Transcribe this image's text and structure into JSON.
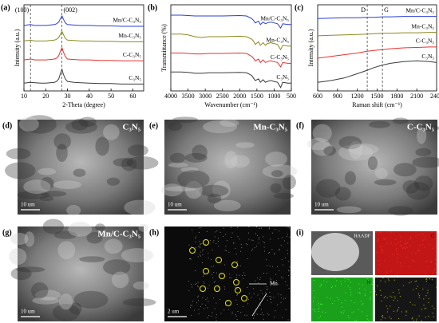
{
  "chart_data": [
    {
      "type": "line",
      "label": "(a)",
      "xlabel": "2-Theta (degree)",
      "ylabel": "Intensity (a.u.)",
      "xlim": [
        10,
        65
      ],
      "xticks": [
        10,
        20,
        30,
        40,
        50,
        60
      ],
      "ylim": [
        0,
        100
      ],
      "x": [
        10,
        13,
        15,
        18,
        20,
        22,
        24,
        25,
        26,
        27,
        27.5,
        28,
        29,
        30,
        33,
        36,
        40,
        45,
        50,
        55,
        60,
        65
      ],
      "ref_lines": [
        13,
        27.4
      ],
      "annotations": [
        "(100)",
        "(002)"
      ],
      "series": [
        {
          "name": "Mn/C-C₃N₅",
          "color": "#2a3fd6",
          "values": [
            76,
            77,
            76,
            76,
            76,
            76.5,
            77,
            78,
            80,
            85,
            87,
            84,
            79,
            77,
            76.5,
            76,
            76,
            75.5,
            75.5,
            75,
            75,
            75
          ]
        },
        {
          "name": "Mn-C₃N₅",
          "color": "#8c8a1e",
          "values": [
            58,
            59,
            58,
            58,
            58,
            58.5,
            59,
            60,
            62,
            67,
            69,
            66,
            61,
            59,
            58.5,
            58,
            58,
            57.5,
            57.5,
            57,
            57,
            57
          ]
        },
        {
          "name": "C-C₃N₅",
          "color": "#e8302d",
          "values": [
            36,
            37,
            36,
            36,
            36,
            36.5,
            37,
            38,
            41,
            48,
            50,
            46,
            40,
            37,
            36.5,
            36,
            36,
            35.5,
            35.5,
            35,
            35,
            35
          ]
        },
        {
          "name": "C₃N₅",
          "color": "#3a3a3a",
          "values": [
            9,
            10,
            9.5,
            9,
            9,
            9.5,
            10,
            11,
            14,
            22,
            25,
            20,
            14,
            11,
            10,
            9.5,
            9,
            8.5,
            8.5,
            8,
            8,
            8
          ]
        }
      ]
    },
    {
      "type": "line",
      "label": "(b)",
      "xlabel": "Wavenumber (cm⁻¹)",
      "ylabel": "Transmittance (%)",
      "xlim": [
        4000,
        500
      ],
      "xticks": [
        4000,
        3500,
        3000,
        2500,
        2000,
        1500,
        1000,
        500
      ],
      "ylim": [
        0,
        100
      ],
      "x": [
        4000,
        3700,
        3500,
        3300,
        3100,
        2900,
        2500,
        2000,
        1800,
        1650,
        1600,
        1550,
        1450,
        1400,
        1320,
        1250,
        1200,
        1100,
        1000,
        900,
        810,
        750,
        600,
        500
      ],
      "series": [
        {
          "name": "Mn/C-C₃N₅",
          "color": "#2a3fd6",
          "values": [
            88,
            88,
            87.5,
            87,
            87,
            87,
            87,
            87.5,
            87,
            84,
            82,
            79,
            81,
            77,
            80,
            78,
            79,
            80,
            79,
            78,
            73,
            78,
            77,
            77
          ]
        },
        {
          "name": "Mn-C₃N₅",
          "color": "#8c8a1e",
          "values": [
            66,
            66,
            65,
            63,
            62,
            63,
            63,
            63.5,
            63,
            60,
            58,
            54,
            57,
            53,
            56,
            53,
            55,
            56,
            55,
            54,
            48,
            53,
            52,
            52
          ]
        },
        {
          "name": "C-C₃N₅",
          "color": "#e8302d",
          "values": [
            44,
            44,
            43.5,
            43,
            43,
            43.5,
            43.5,
            44,
            43.5,
            40,
            38,
            35,
            37,
            33,
            36,
            33,
            34,
            35,
            34,
            33,
            28,
            33,
            32,
            32
          ]
        },
        {
          "name": "C₃N₅",
          "color": "#3a3a3a",
          "values": [
            22,
            22,
            21.5,
            20.5,
            20.5,
            21,
            21,
            21.5,
            21,
            18,
            15,
            12,
            14,
            10,
            13,
            10,
            11,
            12,
            11,
            10,
            4,
            10,
            9,
            9
          ]
        }
      ]
    },
    {
      "type": "line",
      "label": "(c)",
      "xlabel": "Raman shift (cm⁻¹)",
      "ylabel": "Intensity (a.u.)",
      "xlim": [
        600,
        2400
      ],
      "xticks": [
        600,
        900,
        1200,
        1500,
        1800,
        2100,
        2400
      ],
      "ylim": [
        0,
        100
      ],
      "x": [
        600,
        800,
        1000,
        1200,
        1350,
        1450,
        1580,
        1700,
        1900,
        2100,
        2300,
        2400
      ],
      "ref_lines": [
        1350,
        1580
      ],
      "annotations": [
        "D",
        "G"
      ],
      "series": [
        {
          "name": "Mn/C-C₃N₅",
          "color": "#2a3fd6",
          "values": [
            84,
            84.5,
            85,
            85,
            85.5,
            85.5,
            86,
            86,
            86.5,
            86.5,
            86.5,
            86.5
          ]
        },
        {
          "name": "Mn-C₃N₅",
          "color": "#8c8a1e",
          "values": [
            64,
            64.5,
            65,
            65.5,
            66,
            66.5,
            67,
            67,
            67.5,
            67.5,
            68,
            68
          ]
        },
        {
          "name": "C-C₃N₅",
          "color": "#e8302d",
          "values": [
            38,
            40,
            42,
            44,
            46,
            47,
            48,
            49,
            50,
            50.5,
            51,
            51
          ]
        },
        {
          "name": "C₃N₅",
          "color": "#3a3a3a",
          "values": [
            10,
            12,
            15,
            20,
            24,
            27,
            30,
            32,
            34,
            35,
            34,
            33
          ]
        }
      ]
    }
  ],
  "images": [
    {
      "label": "(d)",
      "sample": "C₃N₅",
      "scale": "10 um"
    },
    {
      "label": "(e)",
      "sample": "Mn-C₃N₅",
      "scale": "10 um"
    },
    {
      "label": "(f)",
      "sample": "C-C₃N₅",
      "scale": "10 um"
    },
    {
      "label": "(g)",
      "sample": "Mn/C-C₃N₅",
      "scale": "10 um"
    },
    {
      "label": "(h)",
      "element": "Mn",
      "scale": "2 um"
    },
    {
      "label": "(i)",
      "maps": [
        "HAADF",
        "C",
        "N",
        "Mn"
      ]
    }
  ]
}
